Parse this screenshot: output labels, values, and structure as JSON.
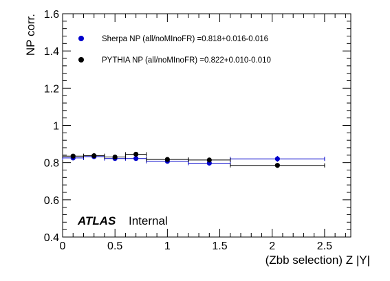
{
  "chart_data": {
    "type": "scatter",
    "title": "",
    "xlabel": "(Zbb selection) Z |Y|",
    "ylabel": "NP corr.",
    "xlim": [
      0,
      2.75
    ],
    "ylim": [
      0.4,
      1.6
    ],
    "x_ticks": [
      "0",
      "0.5",
      "1",
      "1.5",
      "2",
      "2.5"
    ],
    "y_ticks": [
      "0.4",
      "0.6",
      "0.8",
      "1",
      "1.2",
      "1.4",
      "1.6"
    ],
    "grid": false,
    "legend_position": "top-left",
    "series": [
      {
        "name": "Sherpa NP (all/noMInoFR) =0.818+0.016-0.016",
        "color": "#0000cc",
        "points": [
          {
            "x": 0.1,
            "xlo": 0.0,
            "xhi": 0.2,
            "y": 0.825,
            "yerr": 0.006
          },
          {
            "x": 0.3,
            "xlo": 0.2,
            "xhi": 0.4,
            "y": 0.832,
            "yerr": 0.006
          },
          {
            "x": 0.5,
            "xlo": 0.4,
            "xhi": 0.6,
            "y": 0.822,
            "yerr": 0.006
          },
          {
            "x": 0.7,
            "xlo": 0.6,
            "xhi": 0.8,
            "y": 0.822,
            "yerr": 0.008
          },
          {
            "x": 1.0,
            "xlo": 0.8,
            "xhi": 1.2,
            "y": 0.807,
            "yerr": 0.006
          },
          {
            "x": 1.4,
            "xlo": 1.2,
            "xhi": 1.6,
            "y": 0.797,
            "yerr": 0.006
          },
          {
            "x": 2.05,
            "xlo": 1.6,
            "xhi": 2.5,
            "y": 0.82,
            "yerr": 0.016
          }
        ]
      },
      {
        "name": "PYTHIA NP (all/noMInoFR) =0.822+0.010-0.010",
        "color": "#000000",
        "points": [
          {
            "x": 0.1,
            "xlo": 0.0,
            "xhi": 0.2,
            "y": 0.835,
            "yerr": 0.004
          },
          {
            "x": 0.3,
            "xlo": 0.2,
            "xhi": 0.4,
            "y": 0.837,
            "yerr": 0.004
          },
          {
            "x": 0.5,
            "xlo": 0.4,
            "xhi": 0.6,
            "y": 0.83,
            "yerr": 0.004
          },
          {
            "x": 0.7,
            "xlo": 0.6,
            "xhi": 0.8,
            "y": 0.845,
            "yerr": 0.005
          },
          {
            "x": 1.0,
            "xlo": 0.8,
            "xhi": 1.2,
            "y": 0.817,
            "yerr": 0.004
          },
          {
            "x": 1.4,
            "xlo": 1.2,
            "xhi": 1.6,
            "y": 0.814,
            "yerr": 0.004
          },
          {
            "x": 2.05,
            "xlo": 1.6,
            "xhi": 2.5,
            "y": 0.785,
            "yerr": 0.006
          }
        ]
      }
    ],
    "annotations": {
      "atlas": "ATLAS",
      "status": "Internal"
    }
  }
}
